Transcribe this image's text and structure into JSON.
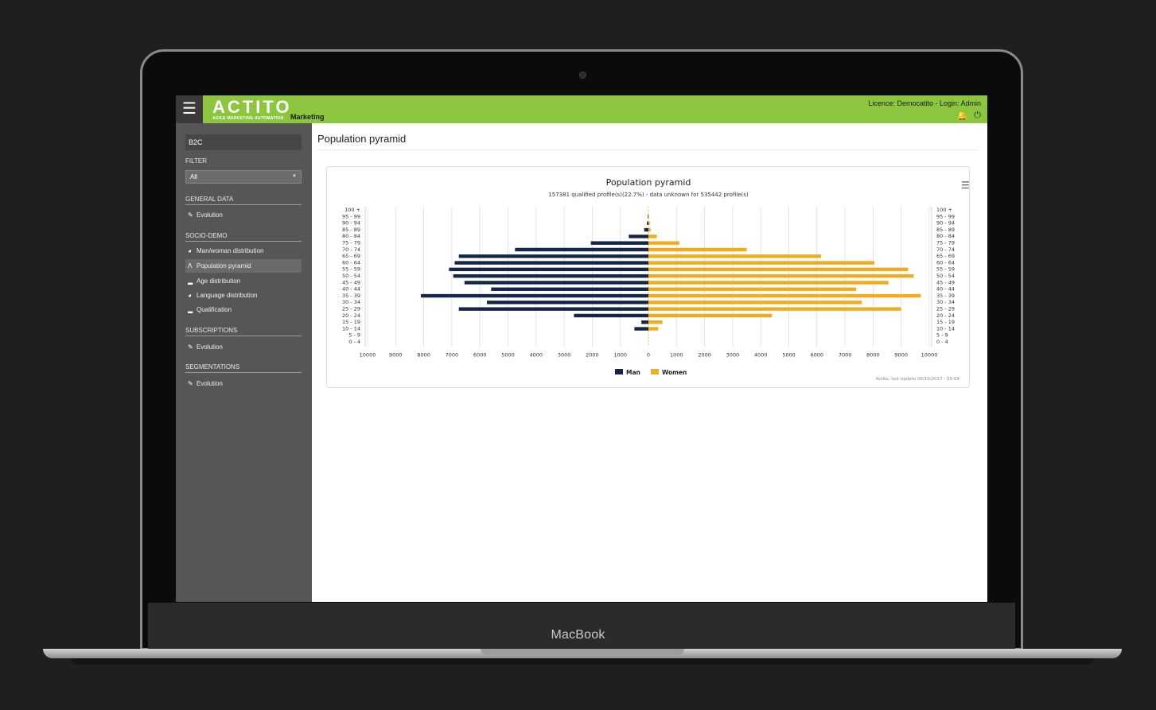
{
  "device": {
    "brand": "MacBook"
  },
  "header": {
    "logo": "ACTITO",
    "tagline": "AGILE MARKETING AUTOMATION",
    "module": "Marketing",
    "licence": "Licence: Democatito - Login: Admin"
  },
  "sidebar": {
    "environment": "B2C",
    "filter_label": "FILTER",
    "filter_value": "All",
    "sections": [
      {
        "title": "GENERAL DATA",
        "items": [
          {
            "label": "Evolution",
            "icon": "edit-chart-icon"
          }
        ]
      },
      {
        "title": "SOCIO-DEMO",
        "items": [
          {
            "label": "Man/woman distribution",
            "icon": "pie-icon"
          },
          {
            "label": "Population pyramid",
            "icon": "pyramid-icon",
            "active": true
          },
          {
            "label": "Age distribution",
            "icon": "bar-chart-icon"
          },
          {
            "label": "Language distribution",
            "icon": "pie-icon"
          },
          {
            "label": "Qualification",
            "icon": "bar-chart-icon"
          }
        ]
      },
      {
        "title": "SUBSCRIPTIONS",
        "items": [
          {
            "label": "Evolution",
            "icon": "edit-chart-icon"
          }
        ]
      },
      {
        "title": "SEGMENTATIONS",
        "items": [
          {
            "label": "Evolution",
            "icon": "edit-chart-icon"
          }
        ]
      }
    ]
  },
  "page": {
    "title": "Population pyramid"
  },
  "chart_data": {
    "type": "bar",
    "orientation": "horizontal-pyramid",
    "title": "Population pyramid",
    "subtitle": "157381 qualified profile(s)(22.7%) - data unknown for 535442 profile(s)",
    "categories": [
      "100 +",
      "95 - 99",
      "90 - 94",
      "85 - 89",
      "80 - 84",
      "75 - 79",
      "70 - 74",
      "65 - 69",
      "60 - 64",
      "55 - 59",
      "50 - 54",
      "45 - 49",
      "40 - 44",
      "35 - 39",
      "30 - 34",
      "25 - 29",
      "20 - 24",
      "15 - 19",
      "10 - 14",
      "5 - 9",
      "0 - 4"
    ],
    "series": [
      {
        "name": "Man",
        "color": "#14264a",
        "values": [
          0,
          20,
          50,
          150,
          700,
          2050,
          4750,
          6750,
          6900,
          7100,
          6950,
          6550,
          5600,
          8100,
          5750,
          6750,
          2650,
          250,
          500,
          0,
          0
        ]
      },
      {
        "name": "Women",
        "color": "#f2ab1c",
        "values": [
          0,
          20,
          50,
          80,
          300,
          1100,
          3500,
          6150,
          8050,
          9250,
          9450,
          8550,
          7400,
          9700,
          7600,
          9000,
          4400,
          500,
          350,
          0,
          0
        ]
      }
    ],
    "xlim": [
      -10000,
      10000
    ],
    "xticks": [
      "10000",
      "9000",
      "8000",
      "7000",
      "6000",
      "5000",
      "4000",
      "3000",
      "2000",
      "1000",
      "0",
      "1000",
      "2000",
      "3000",
      "4000",
      "5000",
      "6000",
      "7000",
      "8000",
      "9000",
      "10000"
    ],
    "legend": "bottom-center",
    "grid": true,
    "credit": "Actito, last update 06/10/2017 - 00:04"
  }
}
